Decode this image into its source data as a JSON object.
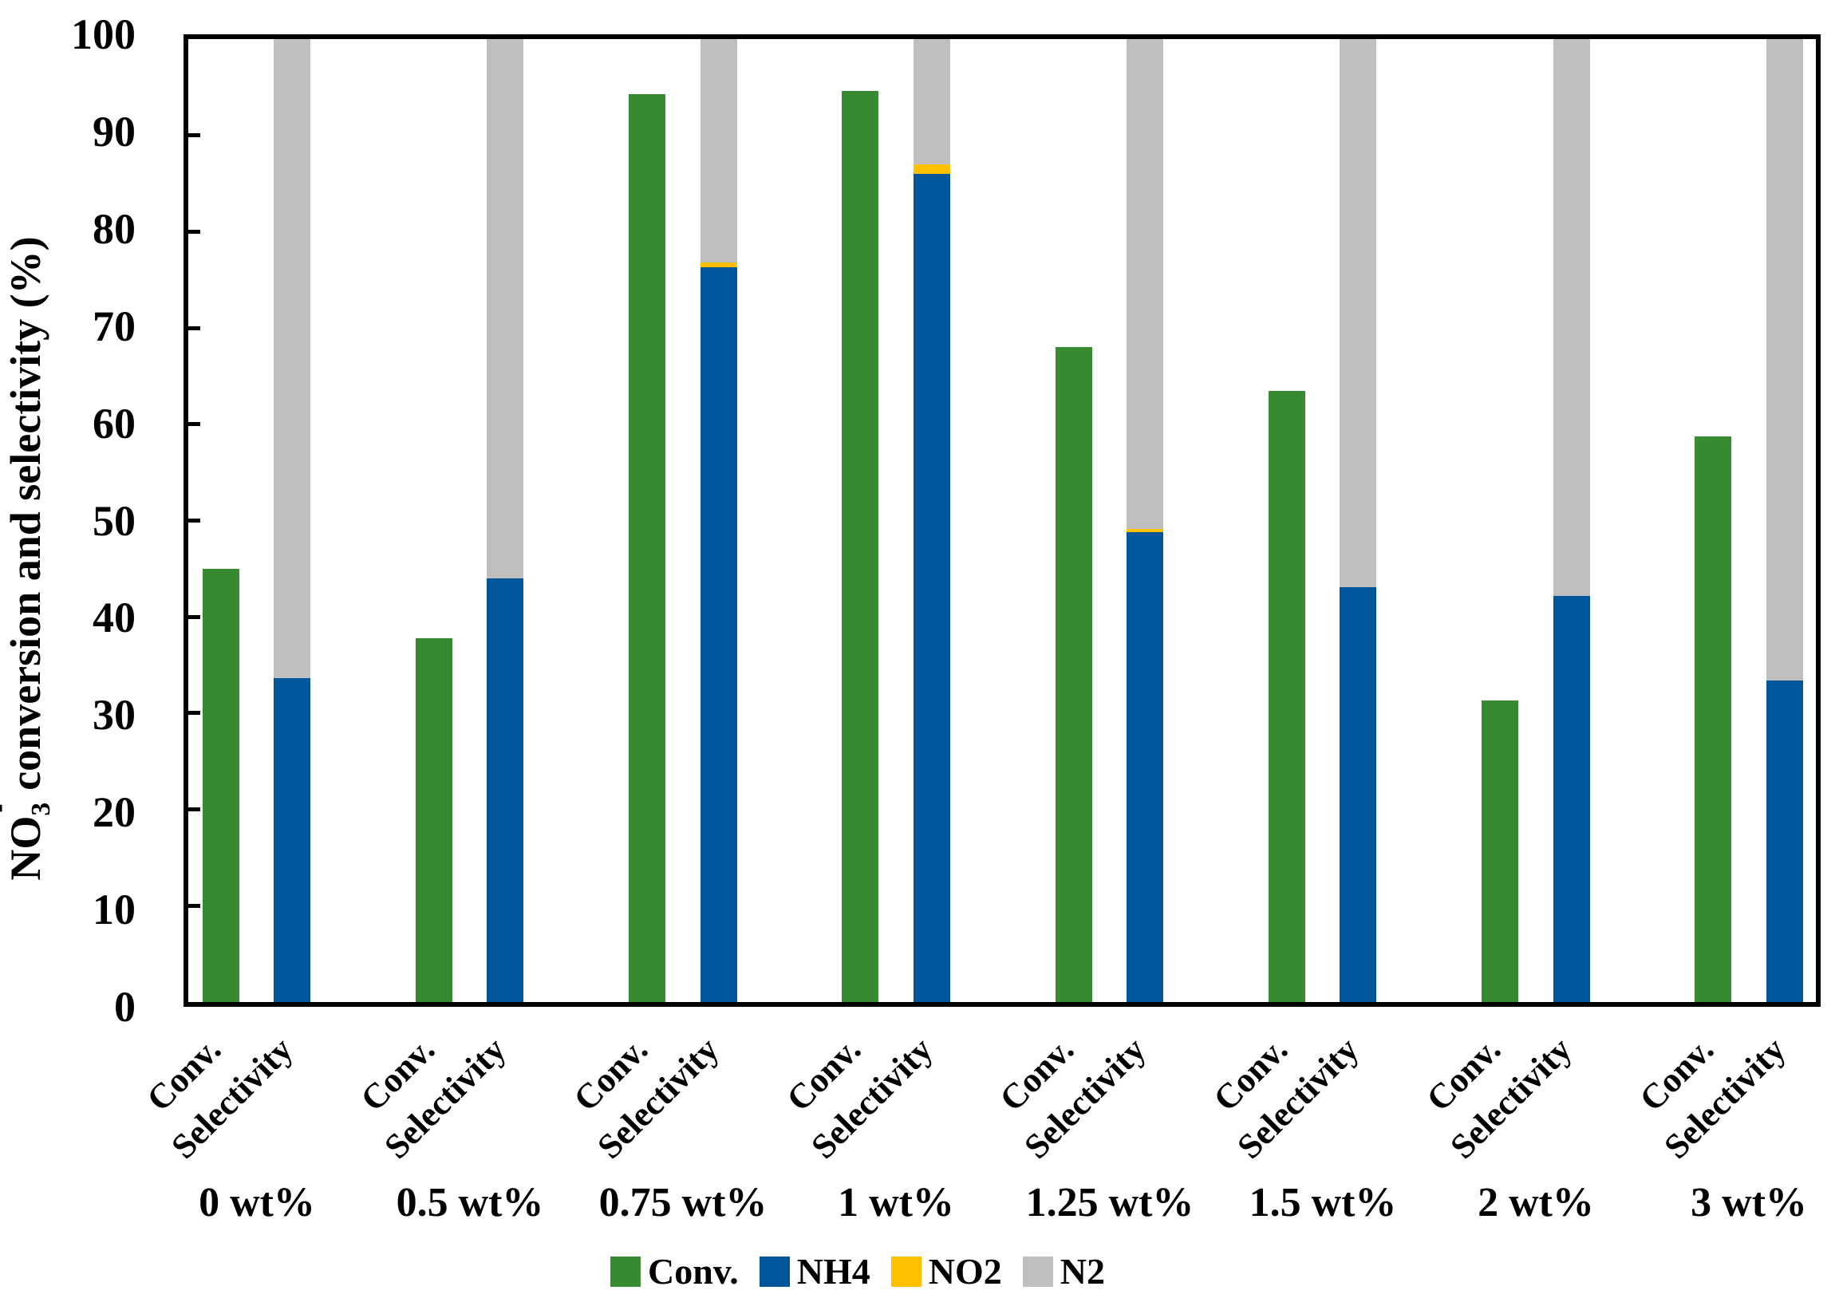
{
  "figure": {
    "background": "#FFFFFF",
    "y_axis": {
      "title_base": "NO",
      "title_sub": "3",
      "title_sup": "-",
      "title_rest": "conversion and selectivity (%)"
    }
  },
  "chart_data": {
    "type": "bar",
    "structure": "Each wt% category has two bars: a single green 'Conv.' bar and a 'Selectivity' bar stacked from NH4 + NO2 + N2 totalling 100%.",
    "title": "",
    "ylabel": "NO3- conversion and selectivity (%)",
    "ylim": [
      0,
      100
    ],
    "yticks": [
      0,
      10,
      20,
      30,
      40,
      50,
      60,
      70,
      80,
      90,
      100
    ],
    "grid": false,
    "legend_position": "bottom",
    "categories": [
      "0 wt%",
      "0.5 wt%",
      "0.75 wt%",
      "1 wt%",
      "1.25 wt%",
      "1.5 wt%",
      "2 wt%",
      "3 wt%"
    ],
    "bar_tick_labels": [
      "Conv.",
      "Selectivity"
    ],
    "series": [
      {
        "name": "Conv.",
        "bar": "Conv.",
        "color": "#388A32",
        "values": [
          45.0,
          37.8,
          94.3,
          94.6,
          68.0,
          63.5,
          31.3,
          58.7
        ]
      },
      {
        "name": "NH4",
        "bar": "Selectivity",
        "color": "#00569B",
        "values": [
          33.6,
          44.0,
          76.3,
          86.0,
          48.8,
          43.1,
          42.2,
          33.4
        ]
      },
      {
        "name": "NO2",
        "bar": "Selectivity",
        "color": "#FFC000",
        "values": [
          0,
          0,
          0.5,
          1.0,
          0.3,
          0,
          0,
          0
        ]
      },
      {
        "name": "N2",
        "bar": "Selectivity",
        "color": "#BFBFBF",
        "values": [
          66.4,
          56.0,
          23.2,
          13.0,
          50.9,
          56.9,
          57.8,
          66.6
        ]
      }
    ],
    "legend": [
      "Conv.",
      "NH4",
      "NO2",
      "N2"
    ]
  }
}
